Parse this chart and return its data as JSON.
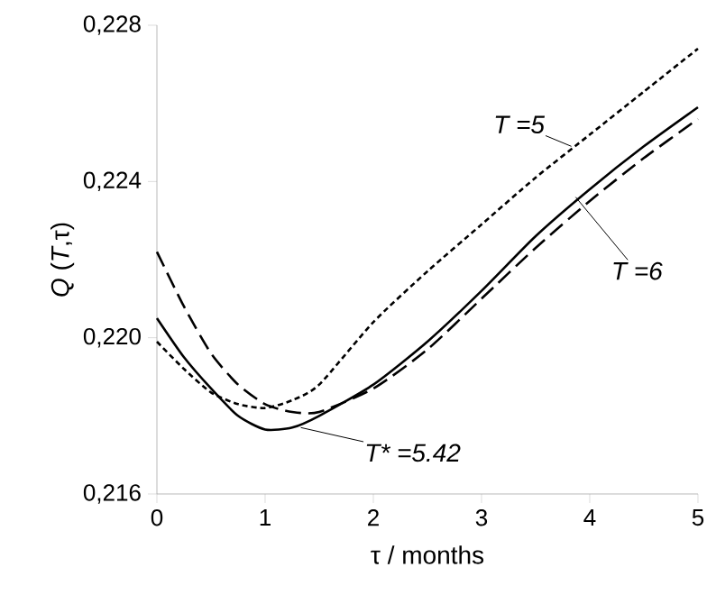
{
  "chart_data": {
    "type": "line",
    "xlabel": "τ / months",
    "ylabel": "*Q* (*T*,τ)",
    "x": [
      0,
      0.25,
      0.5,
      0.75,
      1,
      1.25,
      1.5,
      2,
      2.5,
      3,
      3.5,
      4,
      4.5,
      5
    ],
    "series": [
      {
        "color": "#000000",
        "line_style": "dotted",
        "values": [
          0.2199,
          0.2192,
          0.2186,
          0.2183,
          0.2182,
          0.2184,
          0.2188,
          0.2204,
          0.2217,
          0.2229,
          0.2241,
          0.2252,
          0.2263,
          0.2274
        ]
      },
      {
        "color": "#000000",
        "line_style": "dashed",
        "values": [
          0.2222,
          0.2208,
          0.2196,
          0.2188,
          0.2183,
          0.2181,
          0.2181,
          0.2187,
          0.2197,
          0.221,
          0.2223,
          0.2235,
          0.2246,
          0.2256
        ]
      },
      {
        "color": "#000000",
        "line_style": "solid",
        "values": [
          0.2205,
          0.2195,
          0.2187,
          0.218,
          0.21765,
          0.2177,
          0.218,
          0.2188,
          0.2199,
          0.2212,
          0.2226,
          0.2238,
          0.2249,
          0.2259
        ]
      }
    ],
    "xlim": [
      0,
      5
    ],
    "ylim": [
      0.216,
      0.228
    ],
    "xticks": [
      0,
      1,
      2,
      3,
      4,
      5
    ],
    "yticks": [
      {
        "value": 0.216,
        "label": "0,216"
      },
      {
        "value": 0.22,
        "label": "0,220"
      },
      {
        "value": 0.224,
        "label": "0,224"
      },
      {
        "value": 0.228,
        "label": "0,228"
      }
    ],
    "annotations": [
      {
        "text": "T =5",
        "x": 3.83,
        "y": 0.2249
      },
      {
        "text": "T =6",
        "x": 3.87,
        "y": 0.2236
      },
      {
        "text": "T* =5.42",
        "x": 1.33,
        "y": 0.2177
      }
    ],
    "marker": "none"
  }
}
